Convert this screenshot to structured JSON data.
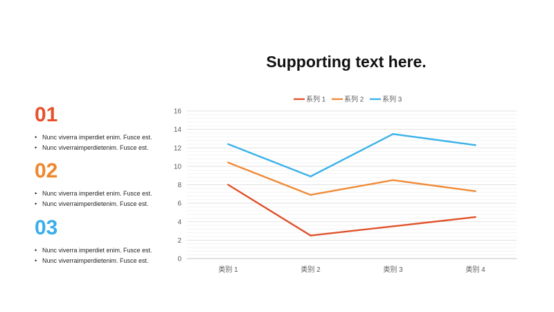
{
  "slide": {
    "title": "Supporting text here.",
    "sections": [
      {
        "number": "01",
        "color": "#E8502B",
        "bullets": [
          "Nunc viverra imperdiet enim. Fusce est.",
          "Nunc viverraimperdietenim. Fusce est."
        ]
      },
      {
        "number": "02",
        "color": "#F0862A",
        "bullets": [
          "Nunc viverra imperdiet enim. Fusce est.",
          "Nunc viverraimperdietenim. Fusce est."
        ]
      },
      {
        "number": "03",
        "color": "#39AEE8",
        "bullets": [
          "Nunc viverra imperdiet enim. Fusce est.",
          "Nunc viverraimperdietenim. Fusce est."
        ]
      }
    ]
  },
  "chart_data": {
    "type": "line",
    "categories": [
      "类别 1",
      "类别 2",
      "类别 3",
      "类别 4"
    ],
    "series": [
      {
        "name": "系列 1",
        "color": "#E0522A",
        "values": [
          8.0,
          2.5,
          3.5,
          4.5
        ]
      },
      {
        "name": "系列 2",
        "color": "#F08A36",
        "values": [
          10.4,
          6.9,
          8.5,
          7.3
        ]
      },
      {
        "name": "系列 3",
        "color": "#3AB2EA",
        "values": [
          12.4,
          8.9,
          13.5,
          12.3
        ]
      }
    ],
    "ylim": [
      0,
      16
    ],
    "yticks": [
      0,
      2,
      4,
      6,
      8,
      10,
      12,
      14,
      16
    ],
    "grid": true,
    "legend_position": "top"
  }
}
